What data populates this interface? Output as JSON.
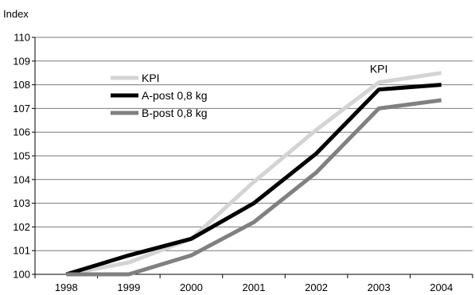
{
  "chart_data": {
    "type": "line",
    "ylabel": "Index",
    "ylim": [
      100,
      110
    ],
    "yticks": [
      "100",
      "101",
      "102",
      "103",
      "104",
      "105",
      "106",
      "107",
      "108",
      "109",
      "110"
    ],
    "categories": [
      "1998",
      "1999",
      "2000",
      "2001",
      "2002",
      "2003",
      "2004"
    ],
    "grid": true,
    "legend_position": "top-left",
    "series": [
      {
        "name": "KPI",
        "color": "#d4d4d4",
        "values": [
          100.0,
          100.5,
          101.5,
          103.9,
          106.1,
          108.1,
          108.5
        ]
      },
      {
        "name": "A-post 0,8 kg",
        "color": "#000000",
        "values": [
          100.0,
          100.8,
          101.5,
          103.0,
          105.1,
          107.8,
          108.0
        ]
      },
      {
        "name": "B-post 0,8 kg",
        "color": "#808080",
        "values": [
          100.0,
          100.0,
          100.8,
          102.2,
          104.3,
          107.0,
          107.35
        ]
      }
    ],
    "annotations": [
      {
        "text": "KPI",
        "x": "2003",
        "y": 108.5
      }
    ]
  }
}
